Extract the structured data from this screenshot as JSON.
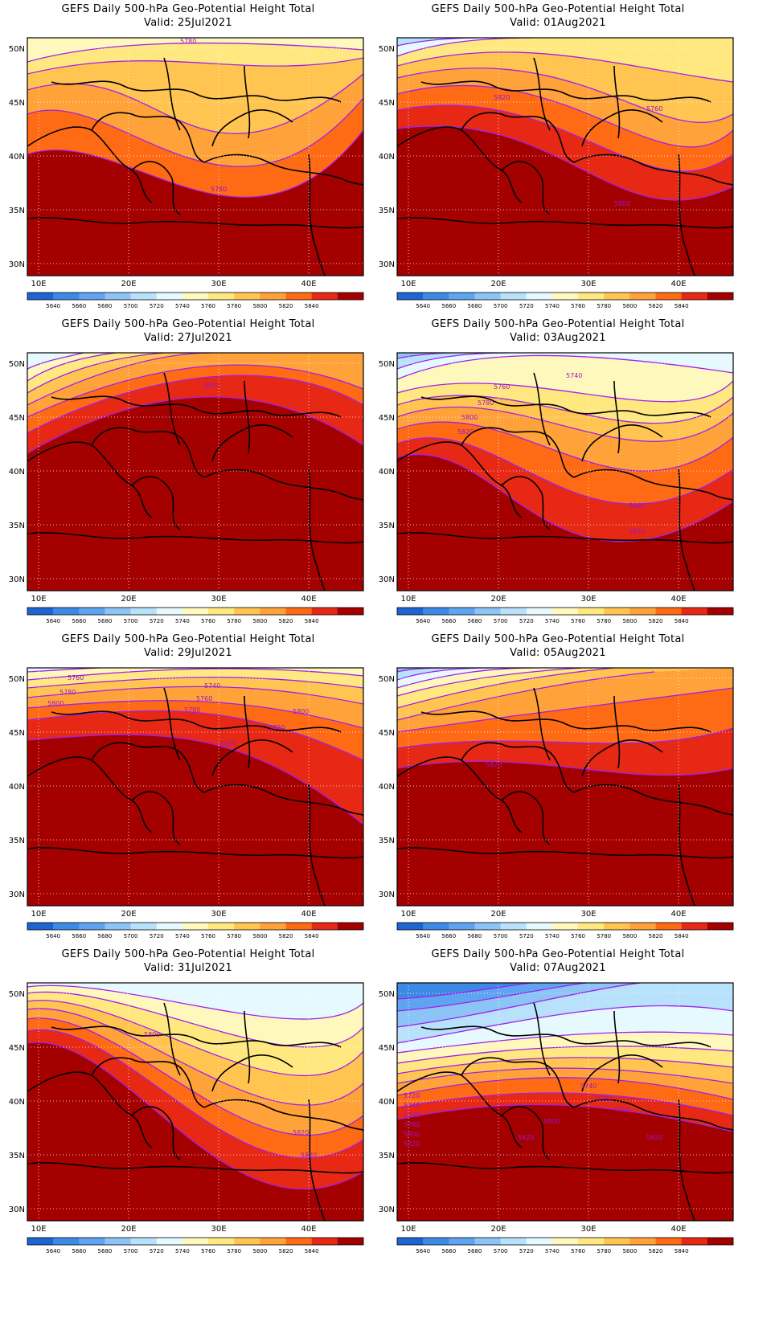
{
  "colorbar": {
    "colors": [
      "#1e64d2",
      "#3c8ae6",
      "#5fa4f0",
      "#8dc4f6",
      "#b8e2fb",
      "#e6f9ff",
      "#fff8bc",
      "#ffe880",
      "#ffc550",
      "#ffa23a",
      "#ff6a14",
      "#e62814",
      "#a50000"
    ],
    "labels": [
      "5640",
      "5660",
      "5680",
      "5700",
      "5720",
      "5740",
      "5760",
      "5780",
      "5800",
      "5820",
      "5840"
    ]
  },
  "axes": {
    "lat_labels": [
      "50N",
      "45N",
      "40N",
      "35N",
      "30N"
    ],
    "lon_labels": [
      "10E",
      "20E",
      "30E",
      "40E"
    ]
  },
  "panels": [
    {
      "title": "GEFS Daily 500-hPa Geo-Potential Height Total",
      "valid": "Valid: 25Jul2021",
      "contour_labels": [
        "5780",
        "5780"
      ]
    },
    {
      "title": "GEFS Daily 500-hPa Geo-Potential Height Total",
      "valid": "Valid: 01Aug2021",
      "contour_labels": [
        "5820",
        "5760",
        "5800"
      ]
    },
    {
      "title": "GEFS Daily 500-hPa Geo-Potential Height Total",
      "valid": "Valid: 27Jul2021",
      "contour_labels": [
        "5800"
      ]
    },
    {
      "title": "GEFS Daily 500-hPa Geo-Potential Height Total",
      "valid": "Valid: 03Aug2021",
      "contour_labels": [
        "5740",
        "5760",
        "5780",
        "5800",
        "5820",
        "5800",
        "5820"
      ]
    },
    {
      "title": "GEFS Daily 500-hPa Geo-Potential Height Total",
      "valid": "Valid: 29Jul2021",
      "contour_labels": [
        "5760",
        "5780",
        "5800",
        "5740",
        "5760",
        "5780",
        "5800",
        "5820",
        "5820"
      ]
    },
    {
      "title": "GEFS Daily 500-hPa Geo-Potential Height Total",
      "valid": "Valid: 05Aug2021",
      "contour_labels": [
        "5820"
      ]
    },
    {
      "title": "GEFS Daily 500-hPa Geo-Potential Height Total",
      "valid": "Valid: 31Jul2021",
      "contour_labels": [
        "5800",
        "5820",
        "5820"
      ]
    },
    {
      "title": "GEFS Daily 500-hPa Geo-Potential Height Total",
      "valid": "Valid: 07Aug2021",
      "contour_labels": [
        "5720",
        "5740",
        "5760",
        "5780",
        "5800",
        "5820",
        "5740",
        "5760",
        "5780",
        "5800",
        "5820",
        "5820"
      ]
    }
  ]
}
